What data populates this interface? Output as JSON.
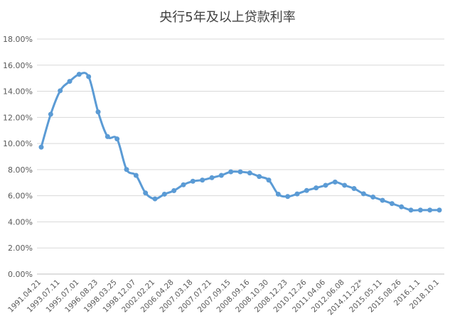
{
  "chart_data": {
    "type": "line",
    "title": "央行5年及以上贷款利率",
    "xlabel": "",
    "ylabel": "",
    "ylim": [
      0,
      18
    ],
    "y_ticks": [
      "0.00%",
      "2.00%",
      "4.00%",
      "6.00%",
      "8.00%",
      "10.00%",
      "12.00%",
      "14.00%",
      "16.00%",
      "18.00%"
    ],
    "grid": true,
    "legend": "none",
    "x_tick_labels": [
      "1991.04.21",
      "1993.07.11",
      "1995.07.01",
      "1996.08.23",
      "1998.03.25",
      "1998.12.07",
      "2002.02.21",
      "2006.04.28",
      "2007.03.18",
      "2007.07.21",
      "2007.09.15",
      "2008.09.16",
      "2008.10.30",
      "2008.12.23",
      "2010.12.26",
      "2011.04.06",
      "2012.06.08",
      "2014.11.22*",
      "2015.05.11",
      "2015.08.26",
      "2016.1.1",
      "2018.10.1"
    ],
    "series": [
      {
        "color": "#5b9bd5",
        "values": [
          9.72,
          12.24,
          14.04,
          14.76,
          15.3,
          15.12,
          12.42,
          10.53,
          10.35,
          8.01,
          7.56,
          6.21,
          5.76,
          6.12,
          6.39,
          6.84,
          7.11,
          7.2,
          7.38,
          7.56,
          7.83,
          7.83,
          7.74,
          7.47,
          7.2,
          6.12,
          5.94,
          6.14,
          6.4,
          6.6,
          6.8,
          7.05,
          6.8,
          6.55,
          6.15,
          5.9,
          5.65,
          5.4,
          5.15,
          4.9,
          4.9,
          4.9,
          4.9
        ]
      }
    ]
  }
}
